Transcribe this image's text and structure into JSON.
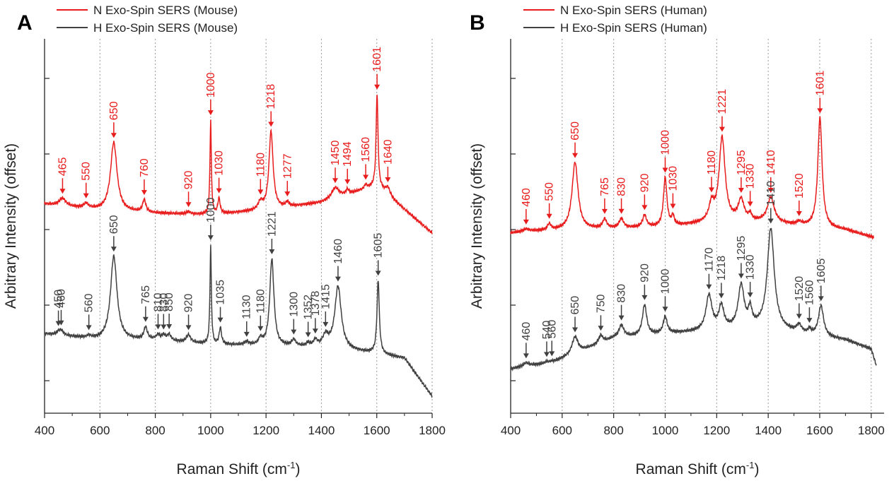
{
  "chart_data": [
    {
      "type": "line",
      "panel_label": "A",
      "xlabel": "Raman Shift (cm",
      "xlabel_superscript": "-1",
      "xlabel_suffix": ")",
      "ylabel": "Arbitrary Intensity (offset)",
      "xlim": [
        400,
        1800
      ],
      "xticks": [
        "400",
        "600",
        "800",
        "1000",
        "1200",
        "1400",
        "1600",
        "1800"
      ],
      "grid_lines_x": [
        600,
        800,
        1000,
        1200,
        1400,
        1600,
        1800
      ],
      "legend": [
        {
          "name": "N Exo-Spin SERS (Mouse)",
          "color": "#e81c1c"
        },
        {
          "name": "H Exo-Spin SERS (Mouse)",
          "color": "#404040"
        }
      ],
      "series": [
        {
          "name": "N Exo-Spin SERS (Mouse)",
          "color": "#e81c1c",
          "offset": 1.0,
          "baseline": [
            [
              400,
              0.38
            ],
            [
              600,
              0.3
            ],
            [
              800,
              0.26
            ],
            [
              1000,
              0.24
            ],
            [
              1200,
              0.3
            ],
            [
              1400,
              0.4
            ],
            [
              1600,
              0.62
            ],
            [
              1800,
              0.0
            ]
          ],
          "peaks": [
            {
              "x": 465,
              "label": "465",
              "h": 0.1,
              "w": 14
            },
            {
              "x": 550,
              "label": "550",
              "h": 0.06,
              "w": 10
            },
            {
              "x": 650,
              "label": "650",
              "h": 0.9,
              "w": 14
            },
            {
              "x": 760,
              "label": "760",
              "h": 0.16,
              "w": 7
            },
            {
              "x": 920,
              "label": "920",
              "h": 0.03,
              "w": 8
            },
            {
              "x": 1000,
              "label": "1000",
              "h": 1.24,
              "w": 3
            },
            {
              "x": 1030,
              "label": "1030",
              "h": 0.2,
              "w": 5
            },
            {
              "x": 1180,
              "label": "1180",
              "h": 0.1,
              "w": 10
            },
            {
              "x": 1218,
              "label": "1218",
              "h": 1.02,
              "w": 9
            },
            {
              "x": 1277,
              "label": "1277",
              "h": 0.06,
              "w": 7
            },
            {
              "x": 1450,
              "label": "1450",
              "h": 0.14,
              "w": 16
            },
            {
              "x": 1494,
              "label": "1494",
              "h": 0.06,
              "w": 6
            },
            {
              "x": 1560,
              "label": "1560",
              "h": 0.05,
              "w": 6
            },
            {
              "x": 1601,
              "label": "1601",
              "h": 1.2,
              "w": 4
            },
            {
              "x": 1640,
              "label": "1640",
              "h": 0.1,
              "w": 10
            }
          ]
        },
        {
          "name": "H Exo-Spin SERS (Mouse)",
          "color": "#404040",
          "offset": 0.0,
          "baseline": [
            [
              400,
              0.42
            ],
            [
              600,
              0.34
            ],
            [
              800,
              0.34
            ],
            [
              1000,
              0.28
            ],
            [
              1200,
              0.26
            ],
            [
              1400,
              0.24
            ],
            [
              1600,
              0.16
            ],
            [
              1700,
              0.1
            ],
            [
              1800,
              -0.4
            ]
          ],
          "peaks": [
            {
              "x": 450,
              "label": "450",
              "h": 0.03,
              "w": 8
            },
            {
              "x": 460,
              "label": "460",
              "h": 0.06,
              "w": 10
            },
            {
              "x": 560,
              "label": "560",
              "h": 0.03,
              "w": 8
            },
            {
              "x": 650,
              "label": "650",
              "h": 1.1,
              "w": 14
            },
            {
              "x": 765,
              "label": "765",
              "h": 0.16,
              "w": 7
            },
            {
              "x": 810,
              "label": "810",
              "h": 0.06,
              "w": 8
            },
            {
              "x": 830,
              "label": "830",
              "h": 0.06,
              "w": 8
            },
            {
              "x": 850,
              "label": "850",
              "h": 0.08,
              "w": 8
            },
            {
              "x": 920,
              "label": "920",
              "h": 0.1,
              "w": 9
            },
            {
              "x": 1000,
              "label": "1000",
              "h": 1.3,
              "w": 3
            },
            {
              "x": 1035,
              "label": "1035",
              "h": 0.22,
              "w": 5
            },
            {
              "x": 1130,
              "label": "1130",
              "h": 0.04,
              "w": 10
            },
            {
              "x": 1180,
              "label": "1180",
              "h": 0.08,
              "w": 8
            },
            {
              "x": 1221,
              "label": "1221",
              "h": 1.14,
              "w": 9
            },
            {
              "x": 1300,
              "label": "1300",
              "h": 0.08,
              "w": 9
            },
            {
              "x": 1352,
              "label": "1352",
              "h": 0.04,
              "w": 7
            },
            {
              "x": 1378,
              "label": "1378",
              "h": 0.08,
              "w": 8
            },
            {
              "x": 1415,
              "label": "1415",
              "h": 0.14,
              "w": 12
            },
            {
              "x": 1460,
              "label": "1460",
              "h": 0.82,
              "w": 14
            },
            {
              "x": 1605,
              "label": "1605",
              "h": 0.96,
              "w": 5
            }
          ]
        }
      ]
    },
    {
      "type": "line",
      "panel_label": "B",
      "xlabel": "Raman Shift (cm",
      "xlabel_superscript": "-1",
      "xlabel_suffix": ")",
      "ylabel": "Arbitrary Intensity (offset)",
      "xlim": [
        400,
        1850
      ],
      "xticks": [
        "400",
        "600",
        "800",
        "1000",
        "1200",
        "1400",
        "1600",
        "1800"
      ],
      "grid_lines_x": [
        600,
        800,
        1000,
        1200,
        1400,
        1600,
        1800
      ],
      "legend": [
        {
          "name": "N Exo-Spin SERS (Human)",
          "color": "#e81c1c"
        },
        {
          "name": "H Exo-Spin SERS (Human)",
          "color": "#404040"
        }
      ],
      "series": [
        {
          "name": "N Exo-Spin SERS (Human)",
          "color": "#e81c1c",
          "offset": 1.0,
          "baseline": [
            [
              400,
              0.0
            ],
            [
              460,
              0.02
            ],
            [
              600,
              0.04
            ],
            [
              800,
              0.06
            ],
            [
              1000,
              0.08
            ],
            [
              1200,
              0.14
            ],
            [
              1400,
              0.14
            ],
            [
              1500,
              0.1
            ],
            [
              1700,
              0.04
            ],
            [
              1810,
              -0.06
            ]
          ],
          "peaks": [
            {
              "x": 460,
              "label": "460",
              "h": 0.03,
              "w": 14
            },
            {
              "x": 550,
              "label": "550",
              "h": 0.08,
              "w": 8
            },
            {
              "x": 650,
              "label": "650",
              "h": 0.88,
              "w": 14
            },
            {
              "x": 765,
              "label": "765",
              "h": 0.12,
              "w": 9
            },
            {
              "x": 830,
              "label": "830",
              "h": 0.12,
              "w": 10
            },
            {
              "x": 920,
              "label": "920",
              "h": 0.16,
              "w": 9
            },
            {
              "x": 1000,
              "label": "1000",
              "h": 0.64,
              "w": 8
            },
            {
              "x": 1030,
              "label": "1030",
              "h": 0.12,
              "w": 6
            },
            {
              "x": 1180,
              "label": "1180",
              "h": 0.22,
              "w": 12
            },
            {
              "x": 1221,
              "label": "1221",
              "h": 1.1,
              "w": 14
            },
            {
              "x": 1295,
              "label": "1295",
              "h": 0.28,
              "w": 14
            },
            {
              "x": 1330,
              "label": "1330",
              "h": 0.08,
              "w": 7
            },
            {
              "x": 1410,
              "label": "1410",
              "h": 0.32,
              "w": 16
            },
            {
              "x": 1520,
              "label": "1520",
              "h": 0.04,
              "w": 12
            },
            {
              "x": 1601,
              "label": "1601",
              "h": 1.44,
              "w": 10
            }
          ]
        },
        {
          "name": "H Exo-Spin SERS (Human)",
          "color": "#404040",
          "offset": 0.0,
          "baseline": [
            [
              400,
              -0.04
            ],
            [
              460,
              0.0
            ],
            [
              560,
              0.04
            ],
            [
              800,
              0.36
            ],
            [
              1000,
              0.42
            ],
            [
              1200,
              0.46
            ],
            [
              1400,
              0.5
            ],
            [
              1550,
              0.4
            ],
            [
              1700,
              0.34
            ],
            [
              1800,
              0.22
            ],
            [
              1820,
              0.0
            ]
          ],
          "peaks": [
            {
              "x": 460,
              "label": "460",
              "h": 0.04,
              "w": 12
            },
            {
              "x": 540,
              "label": "540",
              "h": 0.02,
              "w": 8
            },
            {
              "x": 560,
              "label": "560",
              "h": 0.02,
              "w": 8
            },
            {
              "x": 650,
              "label": "650",
              "h": 0.22,
              "w": 14
            },
            {
              "x": 750,
              "label": "750",
              "h": 0.1,
              "w": 10
            },
            {
              "x": 830,
              "label": "830",
              "h": 0.16,
              "w": 12
            },
            {
              "x": 920,
              "label": "920",
              "h": 0.4,
              "w": 10
            },
            {
              "x": 1000,
              "label": "1000",
              "h": 0.22,
              "w": 9
            },
            {
              "x": 1170,
              "label": "1170",
              "h": 0.46,
              "w": 14
            },
            {
              "x": 1218,
              "label": "1218",
              "h": 0.3,
              "w": 12
            },
            {
              "x": 1295,
              "label": "1295",
              "h": 0.56,
              "w": 14
            },
            {
              "x": 1330,
              "label": "1330",
              "h": 0.22,
              "w": 8
            },
            {
              "x": 1410,
              "label": "1410",
              "h": 1.3,
              "w": 16
            },
            {
              "x": 1520,
              "label": "1520",
              "h": 0.1,
              "w": 12
            },
            {
              "x": 1560,
              "label": "1560",
              "h": 0.06,
              "w": 8
            },
            {
              "x": 1605,
              "label": "1605",
              "h": 0.4,
              "w": 12
            }
          ]
        }
      ]
    }
  ]
}
